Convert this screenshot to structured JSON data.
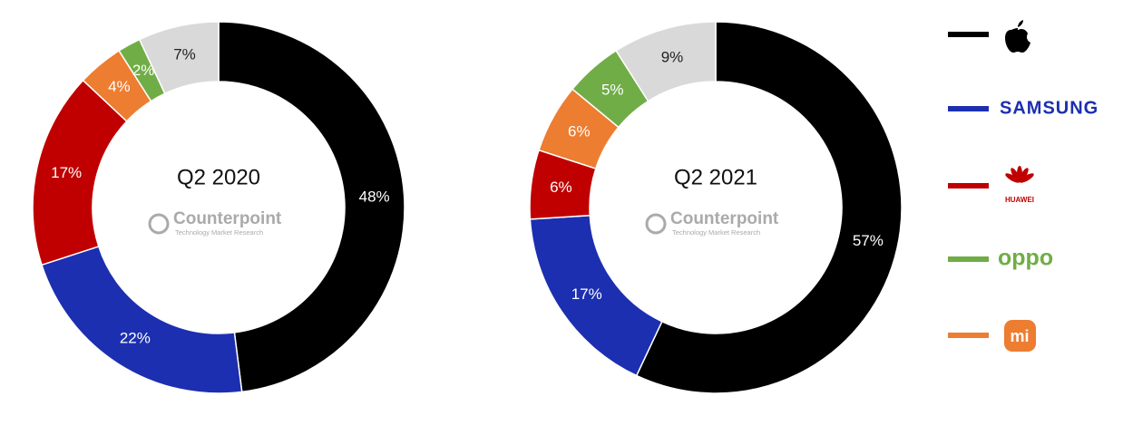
{
  "chart_data": [
    {
      "type": "pie",
      "title": "Q2 2020",
      "values": [
        48,
        22,
        17,
        4,
        2,
        7
      ],
      "value_labels": [
        "48%",
        "22%",
        "17%",
        "4%",
        "2%",
        "7%"
      ],
      "colors": [
        "#000000",
        "#1c2fb0",
        "#c00000",
        "#ed7d31",
        "#70ad47",
        "#d9d9d9"
      ]
    },
    {
      "type": "pie",
      "title": "Q2 2021",
      "values": [
        57,
        17,
        6,
        6,
        5,
        9
      ],
      "value_labels": [
        "57%",
        "17%",
        "6%",
        "6%",
        "5%",
        "9%"
      ],
      "colors": [
        "#000000",
        "#1c2fb0",
        "#c00000",
        "#ed7d31",
        "#70ad47",
        "#d9d9d9"
      ]
    }
  ],
  "watermark": {
    "name": "Counterpoint",
    "tagline": "Technology Market Research"
  },
  "legend": {
    "labels": [
      null,
      "SAMSUNG",
      "HUAWEI",
      "oppo",
      "mi"
    ],
    "colors": [
      "#000000",
      "#1c2fb0",
      "#c00000",
      "#70ad47",
      "#ed7d31"
    ]
  }
}
